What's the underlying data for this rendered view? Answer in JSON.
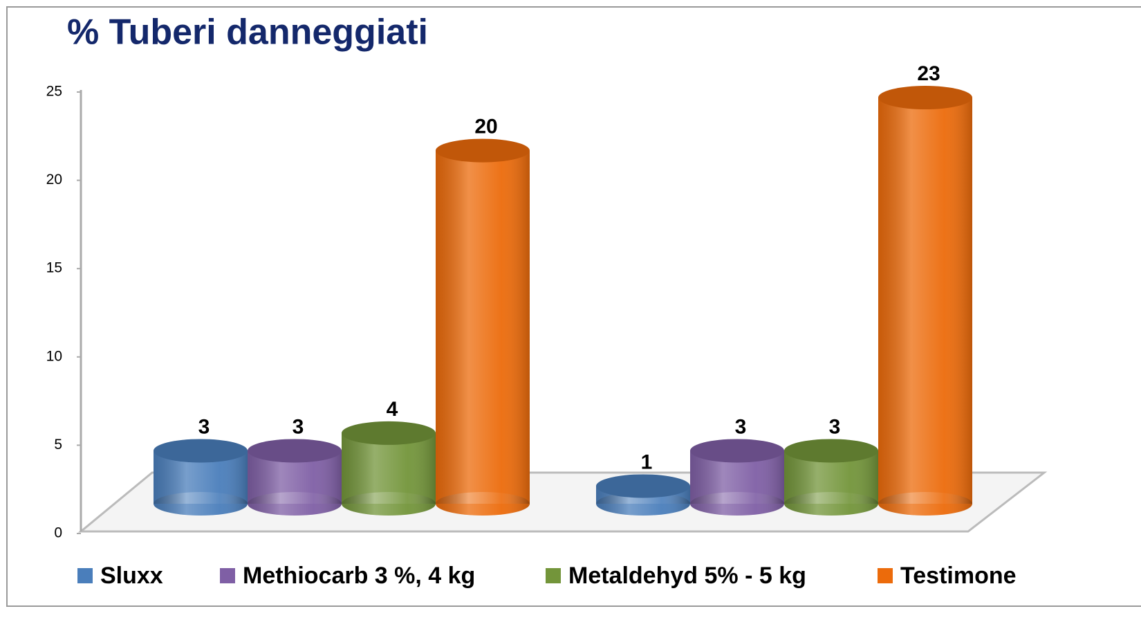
{
  "chart_data": {
    "type": "bar",
    "title": "% Tuberi danneggiati",
    "categories": [
      null,
      null
    ],
    "series": [
      {
        "name": "Sluxx",
        "color": "#4a7ebb",
        "values": [
          3,
          1
        ]
      },
      {
        "name": "Methiocarb 3 %, 4 kg",
        "color": "#7f5fa5",
        "values": [
          3,
          3
        ]
      },
      {
        "name": "Metaldehyd 5% - 5 kg",
        "color": "#73953a",
        "values": [
          4,
          3
        ]
      },
      {
        "name": "Testimone",
        "color": "#ec6b0b",
        "values": [
          20,
          23
        ]
      }
    ],
    "ylim": [
      0,
      25
    ],
    "yticks": [
      0,
      5,
      10,
      15,
      20,
      25
    ],
    "grid": false,
    "legend": "bottom"
  }
}
